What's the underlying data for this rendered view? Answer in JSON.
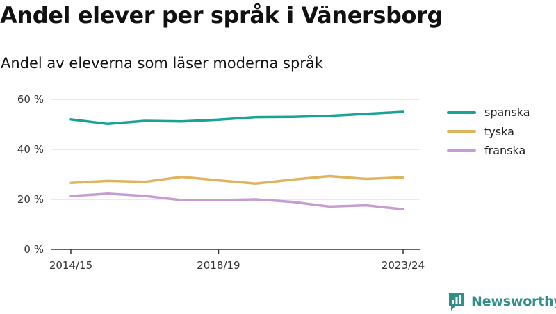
{
  "header": {
    "title": "Andel elever per språk i Vänersborg",
    "subtitle": "Andel av eleverna som läser moderna språk"
  },
  "brand": {
    "name": "Newsworthy",
    "icon": "newsworthy-chart-icon",
    "color": "#2f8f89"
  },
  "colors": {
    "gridline": "#dddddd",
    "axis": "#333333"
  },
  "chart_data": {
    "type": "line",
    "title": "Andel elever per språk i Vänersborg",
    "subtitle": "Andel av eleverna som läser moderna språk",
    "xlabel": "",
    "ylabel": "",
    "x": [
      "2014/15",
      "2015/16",
      "2016/17",
      "2017/18",
      "2018/19",
      "2019/20",
      "2020/21",
      "2021/22",
      "2022/23",
      "2023/24"
    ],
    "x_tick_labels": [
      "2014/15",
      "2018/19",
      "2023/24"
    ],
    "x_tick_indices": [
      0,
      4,
      9
    ],
    "ylim": [
      0,
      60
    ],
    "y_ticks": [
      0,
      20,
      40,
      60
    ],
    "y_tick_labels": [
      "0 %",
      "20 %",
      "40 %",
      "60 %"
    ],
    "grid": true,
    "legend_position": "right",
    "series": [
      {
        "name": "spanska",
        "color": "#17a398",
        "values": [
          52.0,
          50.2,
          51.4,
          51.2,
          51.9,
          52.9,
          53.0,
          53.4,
          54.2,
          55.0
        ]
      },
      {
        "name": "tyska",
        "color": "#e0b45e",
        "values": [
          26.6,
          27.4,
          27.0,
          29.0,
          27.6,
          26.3,
          27.9,
          29.3,
          28.2,
          28.8
        ]
      },
      {
        "name": "franska",
        "color": "#c89bd2",
        "values": [
          21.3,
          22.3,
          21.4,
          19.7,
          19.7,
          20.0,
          19.0,
          17.1,
          17.6,
          16.0
        ]
      }
    ]
  }
}
